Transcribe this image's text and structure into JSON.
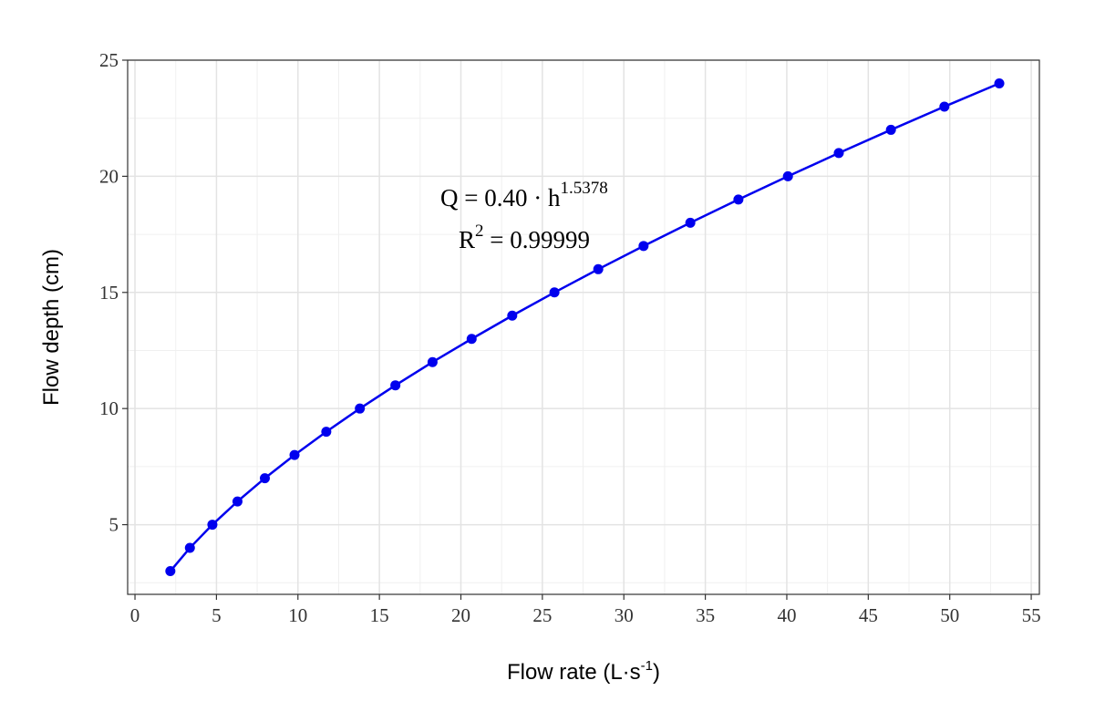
{
  "chart_data": {
    "type": "line",
    "title": "",
    "xlabel": "Flow rate (L·s",
    "xlabel_sup": "-1",
    "xlabel_end": ")",
    "ylabel": "Flow depth (cm)",
    "xlim": [
      -0.45,
      55.5
    ],
    "ylim": [
      2,
      25
    ],
    "xticks": [
      0,
      5,
      10,
      15,
      20,
      25,
      30,
      35,
      40,
      45,
      50,
      55
    ],
    "yticks": [
      5,
      10,
      15,
      20,
      25
    ],
    "grid": true,
    "series": [
      {
        "color": "#0000ee",
        "markers": true,
        "x": [
          2.17,
          3.37,
          4.75,
          6.29,
          7.97,
          9.79,
          11.74,
          13.8,
          15.98,
          18.26,
          20.66,
          23.15,
          25.74,
          28.43,
          31.21,
          34.08,
          37.03,
          40.07,
          43.19,
          46.39,
          49.67,
          53.04
        ],
        "y": [
          3,
          4,
          5,
          6,
          7,
          8,
          9,
          10,
          11,
          12,
          13,
          14,
          15,
          16,
          17,
          18,
          19,
          20,
          21,
          22,
          23,
          24
        ]
      }
    ],
    "annotations": {
      "equation": "Q = 0.40 · h",
      "equation_exp": "1.5378",
      "r2_label": "R",
      "r2_exp": "2",
      "r2_value": " = 0.99999"
    }
  }
}
